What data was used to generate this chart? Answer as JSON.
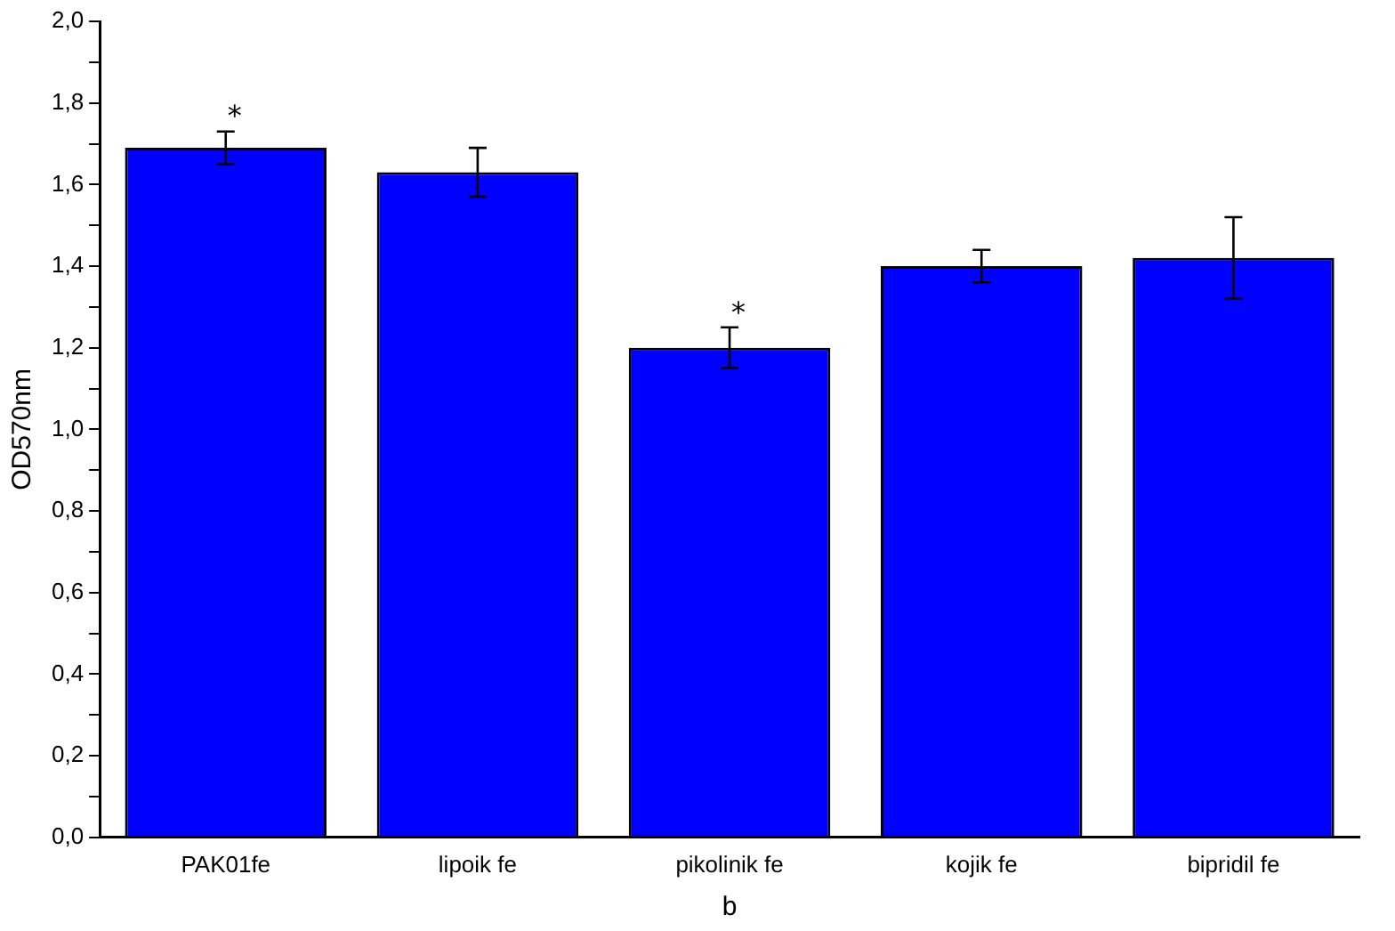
{
  "chart_data": {
    "type": "bar",
    "xlabel": "b",
    "ylabel": "OD570nm",
    "categories": [
      "PAK01fe",
      "lipoik fe",
      "pikolinik fe",
      "kojik fe",
      "bipridil fe"
    ],
    "values": [
      1.69,
      1.63,
      1.2,
      1.4,
      1.42
    ],
    "errors": [
      0.04,
      0.06,
      0.05,
      0.04,
      0.1
    ],
    "color": "#0000ff",
    "ylim": [
      0,
      2
    ],
    "yticks": [
      {
        "value": 0,
        "label": "0,0"
      },
      {
        "value": 0.1,
        "label": null
      },
      {
        "value": 0.2,
        "label": "0,2"
      },
      {
        "value": 0.3,
        "label": null
      },
      {
        "value": 0.4,
        "label": "0,4"
      },
      {
        "value": 0.5,
        "label": null
      },
      {
        "value": 0.6,
        "label": "0,6"
      },
      {
        "value": 0.7,
        "label": null
      },
      {
        "value": 0.8,
        "label": "0,8"
      },
      {
        "value": 0.9,
        "label": null
      },
      {
        "value": 1,
        "label": "1,0"
      },
      {
        "value": 1.1,
        "label": null
      },
      {
        "value": 1.2,
        "label": "1,2"
      },
      {
        "value": 1.3,
        "label": null
      },
      {
        "value": 1.4,
        "label": "1,4"
      },
      {
        "value": 1.5,
        "label": null
      },
      {
        "value": 1.6,
        "label": "1,6"
      },
      {
        "value": 1.7,
        "label": null
      },
      {
        "value": 1.8,
        "label": "1,8"
      },
      {
        "value": 1.9,
        "label": null
      },
      {
        "value": 2,
        "label": "2,0"
      }
    ],
    "annotations": [
      {
        "text": "*",
        "x": "PAK01fe",
        "y": 1.74
      },
      {
        "text": "*",
        "x": "pikolinik fe",
        "y": 1.26
      }
    ],
    "grid": false,
    "legend": false
  }
}
